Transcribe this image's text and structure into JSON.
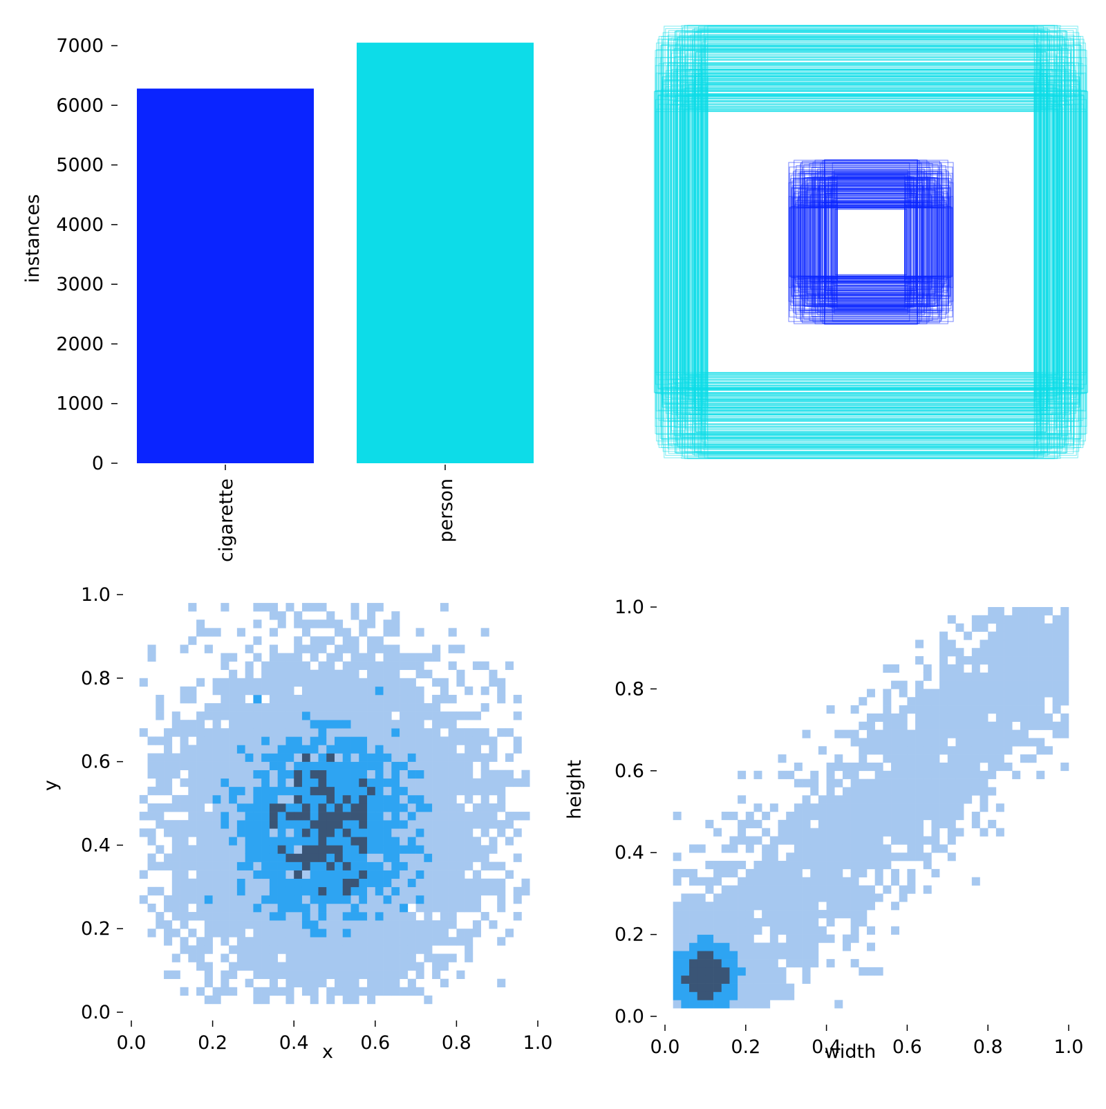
{
  "colors": {
    "cigarette": "#0a24ff",
    "person": "#0ddce8",
    "hist_low": "#a6c8f0",
    "hist_mid": "#2ea4f2",
    "hist_high": "#3a5576"
  },
  "chart_data": [
    {
      "id": "instances",
      "type": "bar",
      "categories": [
        "cigarette",
        "person"
      ],
      "values": [
        6280,
        7050
      ],
      "colors": [
        "#0a24ff",
        "#0ddce8"
      ],
      "xlabel": "",
      "ylabel": "instances",
      "ylim": [
        0,
        7250
      ],
      "yticks": [
        0,
        1000,
        2000,
        3000,
        4000,
        5000,
        6000,
        7000
      ],
      "ytick_labels": [
        "0",
        "1000",
        "2000",
        "3000",
        "4000",
        "5000",
        "6000",
        "7000"
      ],
      "grid": false
    },
    {
      "id": "box-overlay",
      "type": "other",
      "description_series": [
        {
          "name": "person",
          "color": "#0ddce8",
          "width_range": [
            0.75,
            1.0
          ],
          "height_range": [
            0.6,
            1.0
          ]
        },
        {
          "name": "cigarette",
          "color": "#0a24ff",
          "width_range": [
            0.15,
            0.38
          ],
          "height_range": [
            0.15,
            0.38
          ]
        }
      ]
    },
    {
      "id": "xy-hist",
      "type": "heatmap",
      "xlabel": "x",
      "ylabel": "y",
      "xlim": [
        0,
        1
      ],
      "ylim": [
        0,
        1
      ],
      "xticks": [
        "0.0",
        "0.2",
        "0.4",
        "0.6",
        "0.8",
        "1.0"
      ],
      "yticks": [
        "0.0",
        "0.2",
        "0.4",
        "0.6",
        "0.8",
        "1.0"
      ],
      "bins": 50,
      "center": [
        0.48,
        0.45
      ],
      "spread": [
        0.17,
        0.18
      ],
      "peak_density": "high"
    },
    {
      "id": "wh-hist",
      "type": "heatmap",
      "xlabel": "width",
      "ylabel": "height",
      "xlim": [
        0,
        1
      ],
      "ylim": [
        0,
        1
      ],
      "xticks": [
        "0.0",
        "0.2",
        "0.4",
        "0.6",
        "0.8",
        "1.0"
      ],
      "yticks": [
        "0.0",
        "0.2",
        "0.4",
        "0.6",
        "0.8",
        "1.0"
      ],
      "bins": 50,
      "cluster_center": [
        0.1,
        0.1
      ],
      "trend": "diagonal from (0.05,0.05) to (1.0,1.0)"
    }
  ]
}
